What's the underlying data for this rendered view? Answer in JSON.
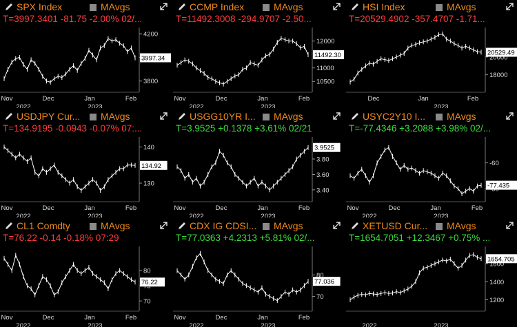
{
  "chart_data": [
    {
      "type": "line",
      "title": "SPX Index",
      "studies": "MAvgs",
      "quote": "T=3997.3401 -81.75 -2.00% 02/...",
      "direction": "down",
      "last_label": "3997.34",
      "yticks": [
        "4200",
        "4000",
        "3800"
      ],
      "ytick_values": [
        4200,
        4000,
        3800
      ],
      "ylim": [
        3740,
        4230
      ],
      "xticks": [
        "Nov",
        "Dec",
        "Jan",
        "Feb"
      ],
      "years": [
        "2022",
        "2023"
      ],
      "x": [
        0,
        3,
        6,
        9,
        12,
        15,
        18,
        21,
        24,
        27,
        30,
        33,
        36,
        39,
        42,
        45,
        48,
        51,
        54,
        57,
        60,
        63,
        66,
        69,
        72,
        75,
        78,
        81,
        84,
        87,
        90,
        93,
        96,
        99,
        102
      ],
      "values": [
        3820,
        3900,
        3960,
        3990,
        4000,
        3940,
        3900,
        3980,
        3950,
        3900,
        3840,
        3800,
        3790,
        3820,
        3840,
        3830,
        3860,
        3900,
        3930,
        3890,
        3950,
        3990,
        4060,
        4020,
        3980,
        4080,
        4100,
        4160,
        4140,
        4150,
        4120,
        4100,
        4050,
        4080,
        3997
      ]
    },
    {
      "type": "line",
      "title": "CCMP Index",
      "studies": "MAvgs",
      "quote": "T=11492.3008 -294.9707 -2.50...",
      "direction": "down",
      "last_label": "11492.30",
      "yticks": [
        "12000",
        "11000",
        "10500"
      ],
      "ytick_values": [
        12000,
        11000,
        10500
      ],
      "ylim": [
        10250,
        12400
      ],
      "xticks": [
        "Nov",
        "Dec",
        "Jan",
        "Feb"
      ],
      "years": [
        "2022",
        "2023"
      ],
      "x": [
        0,
        3,
        6,
        9,
        12,
        15,
        18,
        21,
        24,
        27,
        30,
        33,
        36,
        39,
        42,
        45,
        48,
        51,
        54,
        57,
        60,
        63,
        66,
        69,
        72,
        75,
        78,
        81,
        84,
        87,
        90,
        93,
        96,
        99,
        102
      ],
      "values": [
        11100,
        11200,
        11300,
        11250,
        11150,
        11000,
        10900,
        10800,
        10650,
        10600,
        10500,
        10450,
        10400,
        10500,
        10600,
        10700,
        10750,
        10950,
        11000,
        11200,
        11150,
        11100,
        11300,
        11450,
        11500,
        11700,
        11950,
        12100,
        12050,
        12000,
        12000,
        11900,
        11750,
        11800,
        11492
      ]
    },
    {
      "type": "line",
      "title": "HSI Index",
      "studies": "MAvgs",
      "quote": "T=20529.4902 -357.4707 -1.71...",
      "direction": "down",
      "last_label": "20529.49",
      "yticks": [
        "20000",
        "18000"
      ],
      "ytick_values": [
        20000,
        18000
      ],
      "ylim": [
        16500,
        23000
      ],
      "xticks": [
        "Dec",
        "Jan",
        "Feb"
      ],
      "years": [
        "2023"
      ],
      "x": [
        0,
        3,
        6,
        9,
        12,
        15,
        18,
        21,
        24,
        27,
        30,
        33,
        36,
        39,
        42,
        45,
        48,
        51,
        54,
        57,
        60,
        63,
        66,
        69,
        72,
        75,
        78,
        81,
        84,
        87,
        90,
        93,
        96,
        99,
        102
      ],
      "values": [
        17200,
        17500,
        18200,
        18600,
        19000,
        19300,
        19200,
        19500,
        19800,
        19700,
        19600,
        19800,
        20000,
        20200,
        20400,
        21000,
        21300,
        21400,
        21600,
        21700,
        21800,
        22000,
        22200,
        22500,
        22600,
        22000,
        21800,
        21500,
        21300,
        21000,
        21200,
        21000,
        20800,
        20600,
        20529
      ]
    },
    {
      "type": "line",
      "title": "USDJPY Cur...",
      "studies": "MAvgs",
      "quote": "T=134.9195 -0.0943 -0.07% 07:...",
      "direction": "down",
      "last_label": "134.92",
      "yticks": [
        "140",
        "130"
      ],
      "ytick_values": [
        140,
        130
      ],
      "ylim": [
        126,
        142
      ],
      "xticks": [
        "Nov",
        "Dec",
        "Jan",
        "Feb"
      ],
      "years": [
        "2022",
        "2023"
      ],
      "x": [
        0,
        3,
        6,
        9,
        12,
        15,
        18,
        21,
        24,
        27,
        30,
        33,
        36,
        39,
        42,
        45,
        48,
        51,
        54,
        57,
        60,
        63,
        66,
        69,
        72,
        75,
        78,
        81,
        84,
        87,
        90,
        93,
        96,
        99,
        102
      ],
      "values": [
        140,
        139,
        138,
        137,
        138,
        137,
        136,
        137,
        133,
        132,
        134,
        133,
        134,
        135,
        133,
        132,
        131,
        130,
        131,
        129,
        128,
        129,
        130,
        131,
        130,
        128,
        129,
        131,
        132,
        133,
        134,
        134,
        135,
        135,
        134.9
      ]
    },
    {
      "type": "line",
      "title": "USGG10YR I...",
      "studies": "MAvgs",
      "quote": "T=3.9525 +0.1378 +3.61% 02/21",
      "direction": "up",
      "last_label": "3.9525",
      "yticks": [
        "3.80",
        "3.60",
        "3.40"
      ],
      "ytick_values": [
        3.8,
        3.6,
        3.4
      ],
      "ylim": [
        3.3,
        4.05
      ],
      "xticks": [
        "Nov",
        "Dec",
        "Jan",
        "Feb"
      ],
      "years": [
        "2022",
        "2023"
      ],
      "x": [
        0,
        3,
        6,
        9,
        12,
        15,
        18,
        21,
        24,
        27,
        30,
        33,
        36,
        39,
        42,
        45,
        48,
        51,
        54,
        57,
        60,
        63,
        66,
        69,
        72,
        75,
        78,
        81,
        84,
        87,
        90,
        93,
        96,
        99,
        102
      ],
      "values": [
        3.7,
        3.65,
        3.55,
        3.6,
        3.5,
        3.55,
        3.45,
        3.5,
        3.6,
        3.7,
        3.75,
        3.9,
        3.85,
        3.75,
        3.7,
        3.6,
        3.55,
        3.5,
        3.45,
        3.5,
        3.55,
        3.45,
        3.5,
        3.45,
        3.4,
        3.45,
        3.5,
        3.55,
        3.6,
        3.65,
        3.7,
        3.8,
        3.85,
        3.9,
        3.95
      ]
    },
    {
      "type": "line",
      "title": "USYC2Y10 I...",
      "studies": "MAvgs",
      "quote": "T=-77.4346 +3.2088 +3.98% 02/...",
      "direction": "up",
      "last_label": "-77.435",
      "yticks": [
        "-60",
        "-80"
      ],
      "ytick_values": [
        -60,
        -80
      ],
      "ylim": [
        -87,
        -42
      ],
      "xticks": [
        "Nov",
        "Dec",
        "Jan",
        "Feb"
      ],
      "years": [
        "2022",
        "2023"
      ],
      "x": [
        0,
        3,
        6,
        9,
        12,
        15,
        18,
        21,
        24,
        27,
        30,
        33,
        36,
        39,
        42,
        45,
        48,
        51,
        54,
        57,
        60,
        63,
        66,
        69,
        72,
        75,
        78,
        81,
        84,
        87,
        90,
        93,
        96,
        99,
        102
      ],
      "values": [
        -70,
        -72,
        -68,
        -65,
        -70,
        -75,
        -70,
        -60,
        -55,
        -50,
        -48,
        -55,
        -60,
        -65,
        -62,
        -65,
        -64,
        -66,
        -68,
        -66,
        -67,
        -68,
        -70,
        -72,
        -68,
        -70,
        -74,
        -78,
        -80,
        -84,
        -82,
        -80,
        -82,
        -78,
        -77.4
      ]
    },
    {
      "type": "line",
      "title": "CL1 Comdty",
      "studies": "MAvgs",
      "quote": "T=76.22 -0.14 -0.18% 07:29",
      "direction": "down",
      "last_label": "76.22",
      "yticks": [
        "80",
        "75",
        "70"
      ],
      "ytick_values": [
        80,
        75,
        70
      ],
      "ylim": [
        68,
        87
      ],
      "xticks": [
        "Nov",
        "Dec",
        "Jan",
        "Feb"
      ],
      "years": [
        "2022",
        "2023"
      ],
      "x": [
        0,
        3,
        6,
        9,
        12,
        15,
        18,
        21,
        24,
        27,
        30,
        33,
        36,
        39,
        42,
        45,
        48,
        51,
        54,
        57,
        60,
        63,
        66,
        69,
        72,
        75,
        78,
        81,
        84,
        87,
        90,
        93,
        96,
        99,
        102
      ],
      "values": [
        84,
        82,
        80,
        85,
        82,
        78,
        75,
        74,
        72,
        75,
        78,
        77,
        75,
        72,
        73,
        76,
        78,
        80,
        82,
        80,
        79,
        80,
        81,
        79,
        78,
        77,
        76,
        74,
        77,
        79,
        80,
        79,
        78,
        77,
        76.2
      ]
    },
    {
      "type": "line",
      "title": "CDX IG CDSI...",
      "studies": "MAvgs",
      "quote": "T=77.0363 +4.2313 +5.81% 02/...",
      "direction": "up",
      "last_label": "77.036",
      "yticks": [
        "80",
        "70"
      ],
      "ytick_values": [
        80,
        70
      ],
      "ylim": [
        65,
        92
      ],
      "xticks": [
        "Nov",
        "Dec",
        "Jan",
        "Feb"
      ],
      "years": [
        "2022",
        "2023"
      ],
      "x": [
        0,
        3,
        6,
        9,
        12,
        15,
        18,
        21,
        24,
        27,
        30,
        33,
        36,
        39,
        42,
        45,
        48,
        51,
        54,
        57,
        60,
        63,
        66,
        69,
        72,
        75,
        78,
        81,
        84,
        87,
        90,
        93,
        96,
        99,
        102
      ],
      "values": [
        82,
        80,
        78,
        80,
        84,
        88,
        90,
        86,
        82,
        80,
        78,
        77,
        76,
        80,
        82,
        80,
        78,
        76,
        75,
        74,
        73,
        72,
        74,
        71,
        70,
        69,
        68,
        70,
        72,
        71,
        73,
        72,
        73,
        75,
        77
      ]
    },
    {
      "type": "line",
      "title": "XETUSD Cur...",
      "studies": "MAvgs",
      "quote": "T=1654.7051 +12.3467 +0.75% ...",
      "direction": "up",
      "last_label": "1654.705",
      "yticks": [
        "1600",
        "1400",
        "1200"
      ],
      "ytick_values": [
        1600,
        1400,
        1200
      ],
      "ylim": [
        1120,
        1760
      ],
      "xticks": [],
      "years": [
        "2022",
        "2023"
      ],
      "x": [
        0,
        3,
        6,
        9,
        12,
        15,
        18,
        21,
        24,
        27,
        30,
        33,
        36,
        39,
        42,
        45,
        48,
        51,
        54,
        57,
        60,
        63,
        66,
        69,
        72,
        75,
        78,
        81,
        84,
        87,
        90,
        93,
        96,
        99,
        102
      ],
      "values": [
        1200,
        1230,
        1250,
        1260,
        1255,
        1270,
        1265,
        1260,
        1270,
        1280,
        1270,
        1275,
        1290,
        1280,
        1300,
        1320,
        1350,
        1400,
        1500,
        1550,
        1560,
        1580,
        1600,
        1620,
        1640,
        1630,
        1650,
        1600,
        1550,
        1580,
        1640,
        1690,
        1700,
        1670,
        1655
      ]
    }
  ]
}
